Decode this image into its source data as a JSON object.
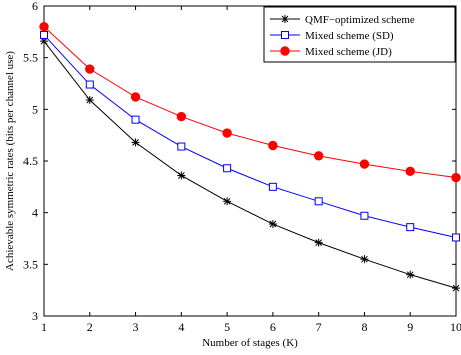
{
  "chart_data": {
    "type": "line",
    "title": "",
    "xlabel": "Number of stages (K)",
    "ylabel": "Achievable symmetric rates (bits per channel use)",
    "xlim": [
      1,
      10
    ],
    "ylim": [
      3,
      6
    ],
    "x_ticks": [
      1,
      2,
      3,
      4,
      5,
      6,
      7,
      8,
      9,
      10
    ],
    "y_ticks": [
      3,
      3.5,
      4,
      4.5,
      5,
      5.5,
      6
    ],
    "grid": false,
    "legend_position": "top-right",
    "x": [
      1,
      2,
      3,
      4,
      5,
      6,
      7,
      8,
      9,
      10
    ],
    "series": [
      {
        "name": "QMF−optimized scheme",
        "marker": "asterisk",
        "color": "#000000",
        "values": [
          5.66,
          5.09,
          4.68,
          4.36,
          4.11,
          3.89,
          3.71,
          3.55,
          3.4,
          3.27
        ]
      },
      {
        "name": "Mixed scheme (SD)",
        "marker": "square",
        "color": "#0000ff",
        "values": [
          5.72,
          5.24,
          4.9,
          4.64,
          4.43,
          4.25,
          4.11,
          3.97,
          3.86,
          3.76
        ]
      },
      {
        "name": "Mixed scheme (JD)",
        "marker": "circle",
        "color": "#ff0000",
        "values": [
          5.8,
          5.39,
          5.12,
          4.93,
          4.77,
          4.65,
          4.55,
          4.47,
          4.4,
          4.34
        ]
      }
    ]
  }
}
